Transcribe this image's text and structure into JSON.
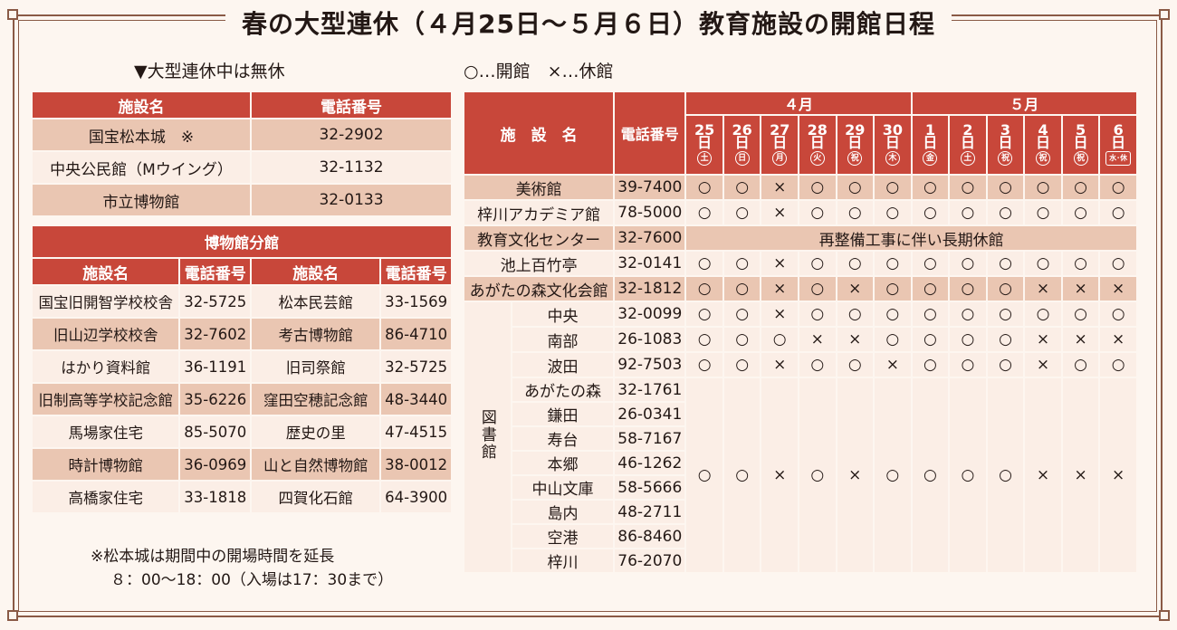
{
  "title": "春の大型連休（４月25日～５月６日）教育施設の開館日程",
  "legend_left": "▼大型連休中は無休",
  "legend_right": "○…開館　×…休館",
  "open_table": {
    "headers": [
      "施設名",
      "電話番号"
    ],
    "rows": [
      {
        "name": "国宝松本城　※",
        "tel": "32-2902"
      },
      {
        "name": "中央公民館（Mウイング）",
        "tel": "32-1132"
      },
      {
        "name": "市立博物館",
        "tel": "32-0133"
      }
    ]
  },
  "branch_table": {
    "title": "博物館分館",
    "headers": [
      "施設名",
      "電話番号",
      "施設名",
      "電話番号"
    ],
    "rows": [
      {
        "name1": "国宝旧開智学校校舎",
        "tel1": "32-5725",
        "name2": "松本民芸館",
        "tel2": "33-1569"
      },
      {
        "name1": "旧山辺学校校舎",
        "tel1": "32-7602",
        "name2": "考古博物館",
        "tel2": "86-4710"
      },
      {
        "name1": "はかり資料館",
        "tel1": "36-1191",
        "name2": "旧司祭館",
        "tel2": "32-5725"
      },
      {
        "name1": "旧制高等学校記念館",
        "tel1": "35-6226",
        "name2": "窪田空穂記念館",
        "tel2": "48-3440"
      },
      {
        "name1": "馬場家住宅",
        "tel1": "85-5070",
        "name2": "歴史の里",
        "tel2": "47-4515"
      },
      {
        "name1": "時計博物館",
        "tel1": "36-0969",
        "name2": "山と自然博物館",
        "tel2": "38-0012"
      },
      {
        "name1": "高橋家住宅",
        "tel1": "33-1818",
        "name2": "四賀化石館",
        "tel2": "64-3900"
      }
    ]
  },
  "note_line1": "※松本城は期間中の開場時間を延長",
  "note_line2": "８：00～18：00（入場は17：30まで）",
  "schedule": {
    "header_name": "施　設　名",
    "header_tel": "電話番号",
    "month_apr": "４月",
    "month_may": "５月",
    "days": [
      {
        "num": "25",
        "d": "日",
        "w": "土"
      },
      {
        "num": "26",
        "d": "日",
        "w": "日"
      },
      {
        "num": "27",
        "d": "日",
        "w": "月"
      },
      {
        "num": "28",
        "d": "日",
        "w": "火"
      },
      {
        "num": "29",
        "d": "日",
        "w": "祝"
      },
      {
        "num": "30",
        "d": "日",
        "w": "木"
      },
      {
        "num": "1",
        "d": "日",
        "w": "金"
      },
      {
        "num": "2",
        "d": "日",
        "w": "土"
      },
      {
        "num": "3",
        "d": "日",
        "w": "祝"
      },
      {
        "num": "4",
        "d": "日",
        "w": "祝"
      },
      {
        "num": "5",
        "d": "日",
        "w": "祝"
      },
      {
        "num": "6",
        "d": "日",
        "w": "水･休"
      }
    ],
    "rows": [
      {
        "name": "美術館",
        "tel": "39-7400",
        "marks": [
          "○",
          "○",
          "×",
          "○",
          "○",
          "○",
          "○",
          "○",
          "○",
          "○",
          "○",
          "○"
        ]
      },
      {
        "name": "梓川アカデミア館",
        "tel": "78-5000",
        "marks": [
          "○",
          "○",
          "×",
          "○",
          "○",
          "○",
          "○",
          "○",
          "○",
          "○",
          "○",
          "○"
        ]
      },
      {
        "name": "教育文化センター",
        "tel": "32-7600",
        "closed_text": "再整備工事に伴い長期休館"
      },
      {
        "name": "池上百竹亭",
        "tel": "32-0141",
        "marks": [
          "○",
          "○",
          "×",
          "○",
          "○",
          "○",
          "○",
          "○",
          "○",
          "○",
          "○",
          "○"
        ]
      },
      {
        "name": "あがたの森文化会館",
        "tel": "32-1812",
        "marks": [
          "○",
          "○",
          "×",
          "○",
          "×",
          "○",
          "○",
          "○",
          "○",
          "×",
          "×",
          "×"
        ]
      }
    ],
    "library_label": "図書館",
    "library_rows": [
      {
        "name": "中央",
        "tel": "32-0099",
        "marks": [
          "○",
          "○",
          "×",
          "○",
          "○",
          "○",
          "○",
          "○",
          "○",
          "○",
          "○",
          "○"
        ]
      },
      {
        "name": "南部",
        "tel": "26-1083",
        "marks": [
          "○",
          "○",
          "○",
          "×",
          "×",
          "○",
          "○",
          "○",
          "○",
          "×",
          "×",
          "×"
        ]
      },
      {
        "name": "波田",
        "tel": "92-7503",
        "marks": [
          "○",
          "○",
          "×",
          "○",
          "○",
          "×",
          "○",
          "○",
          "○",
          "×",
          "○",
          "○"
        ]
      }
    ],
    "library_branch_rows": [
      {
        "name": "あがたの森",
        "tel": "32-1761"
      },
      {
        "name": "鎌田",
        "tel": "26-0341"
      },
      {
        "name": "寿台",
        "tel": "58-7167"
      },
      {
        "name": "本郷",
        "tel": "46-1262"
      },
      {
        "name": "中山文庫",
        "tel": "58-5666"
      },
      {
        "name": "島内",
        "tel": "48-2711"
      },
      {
        "name": "空港",
        "tel": "86-8460"
      },
      {
        "name": "梓川",
        "tel": "76-2070"
      }
    ],
    "library_branch_marks": [
      "○",
      "○",
      "×",
      "○",
      "×",
      "○",
      "○",
      "○",
      "○",
      "×",
      "×",
      "×"
    ]
  }
}
